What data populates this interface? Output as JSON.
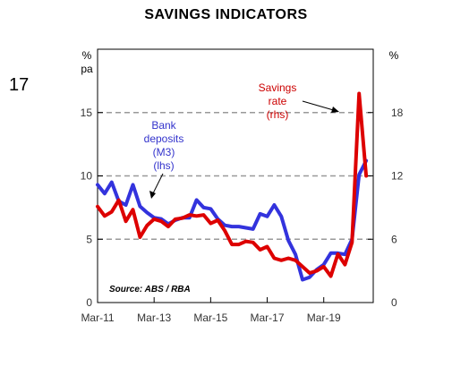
{
  "slide_number": "17",
  "chart_data": {
    "type": "line",
    "title": "SAVINGS INDICATORS",
    "left_axis_unit": [
      "%",
      "pa"
    ],
    "right_axis_unit": "%",
    "left_ylim": [
      0,
      20
    ],
    "right_ylim": [
      0,
      24
    ],
    "left_ticks": [
      0,
      5,
      10,
      15
    ],
    "right_ticks": [
      0,
      6,
      12,
      18
    ],
    "x_ticks": [
      "Mar-11",
      "Mar-13",
      "Mar-15",
      "Mar-17",
      "Mar-19"
    ],
    "x_range": [
      "Mar-11",
      "Dec-20"
    ],
    "gridlines": "dashed at 5, 10, 15",
    "source": "Source: ABS / RBA",
    "series": [
      {
        "name": "Bank deposits (M3) (lhs)",
        "annotation": [
          "Bank",
          "deposits",
          "(M3)",
          "(lhs)"
        ],
        "axis": "left",
        "color": "#3333dd",
        "x": [
          "Mar-11",
          "Jun-11",
          "Sep-11",
          "Dec-11",
          "Mar-12",
          "Jun-12",
          "Sep-12",
          "Dec-12",
          "Mar-13",
          "Jun-13",
          "Sep-13",
          "Dec-13",
          "Mar-14",
          "Jun-14",
          "Sep-14",
          "Dec-14",
          "Mar-15",
          "Jun-15",
          "Sep-15",
          "Dec-15",
          "Mar-16",
          "Jun-16",
          "Sep-16",
          "Dec-16",
          "Mar-17",
          "Jun-17",
          "Sep-17",
          "Dec-17",
          "Mar-18",
          "Jun-18",
          "Sep-18",
          "Dec-18",
          "Mar-19",
          "Jun-19",
          "Sep-19",
          "Dec-19",
          "Mar-20",
          "Jun-20",
          "Sep-20"
        ],
        "values": [
          9.3,
          8.6,
          9.5,
          8.0,
          7.7,
          9.3,
          7.6,
          7.1,
          6.7,
          6.6,
          6.2,
          6.5,
          6.7,
          6.7,
          8.1,
          7.5,
          7.4,
          6.6,
          6.1,
          6.0,
          6.0,
          5.9,
          5.8,
          7.0,
          6.8,
          7.7,
          6.8,
          4.9,
          3.8,
          1.8,
          2.0,
          2.6,
          3.0,
          3.9,
          3.9,
          3.8,
          5.0,
          10.1,
          11.2
        ]
      },
      {
        "name": "Savings rate (rhs)",
        "annotation": [
          "Savings",
          "rate",
          "(rhs)"
        ],
        "axis": "right",
        "color": "#dd0000",
        "x": [
          "Mar-11",
          "Jun-11",
          "Sep-11",
          "Dec-11",
          "Mar-12",
          "Jun-12",
          "Sep-12",
          "Dec-12",
          "Mar-13",
          "Jun-13",
          "Sep-13",
          "Dec-13",
          "Mar-14",
          "Jun-14",
          "Sep-14",
          "Dec-14",
          "Mar-15",
          "Jun-15",
          "Sep-15",
          "Dec-15",
          "Mar-16",
          "Jun-16",
          "Sep-16",
          "Dec-16",
          "Mar-17",
          "Jun-17",
          "Sep-17",
          "Dec-17",
          "Mar-18",
          "Jun-18",
          "Sep-18",
          "Dec-18",
          "Mar-19",
          "Jun-19",
          "Sep-19",
          "Dec-19",
          "Mar-20",
          "Jun-20",
          "Sep-20"
        ],
        "values": [
          9.1,
          8.2,
          8.6,
          9.7,
          7.7,
          8.8,
          6.2,
          7.3,
          7.9,
          7.7,
          7.2,
          7.9,
          8.0,
          8.3,
          8.2,
          8.3,
          7.5,
          7.8,
          6.8,
          5.5,
          5.5,
          5.8,
          5.7,
          5.0,
          5.3,
          4.2,
          4.0,
          4.2,
          4.0,
          3.4,
          2.8,
          3.0,
          3.4,
          2.5,
          4.6,
          3.6,
          5.7,
          19.8,
          12.0
        ]
      }
    ]
  }
}
